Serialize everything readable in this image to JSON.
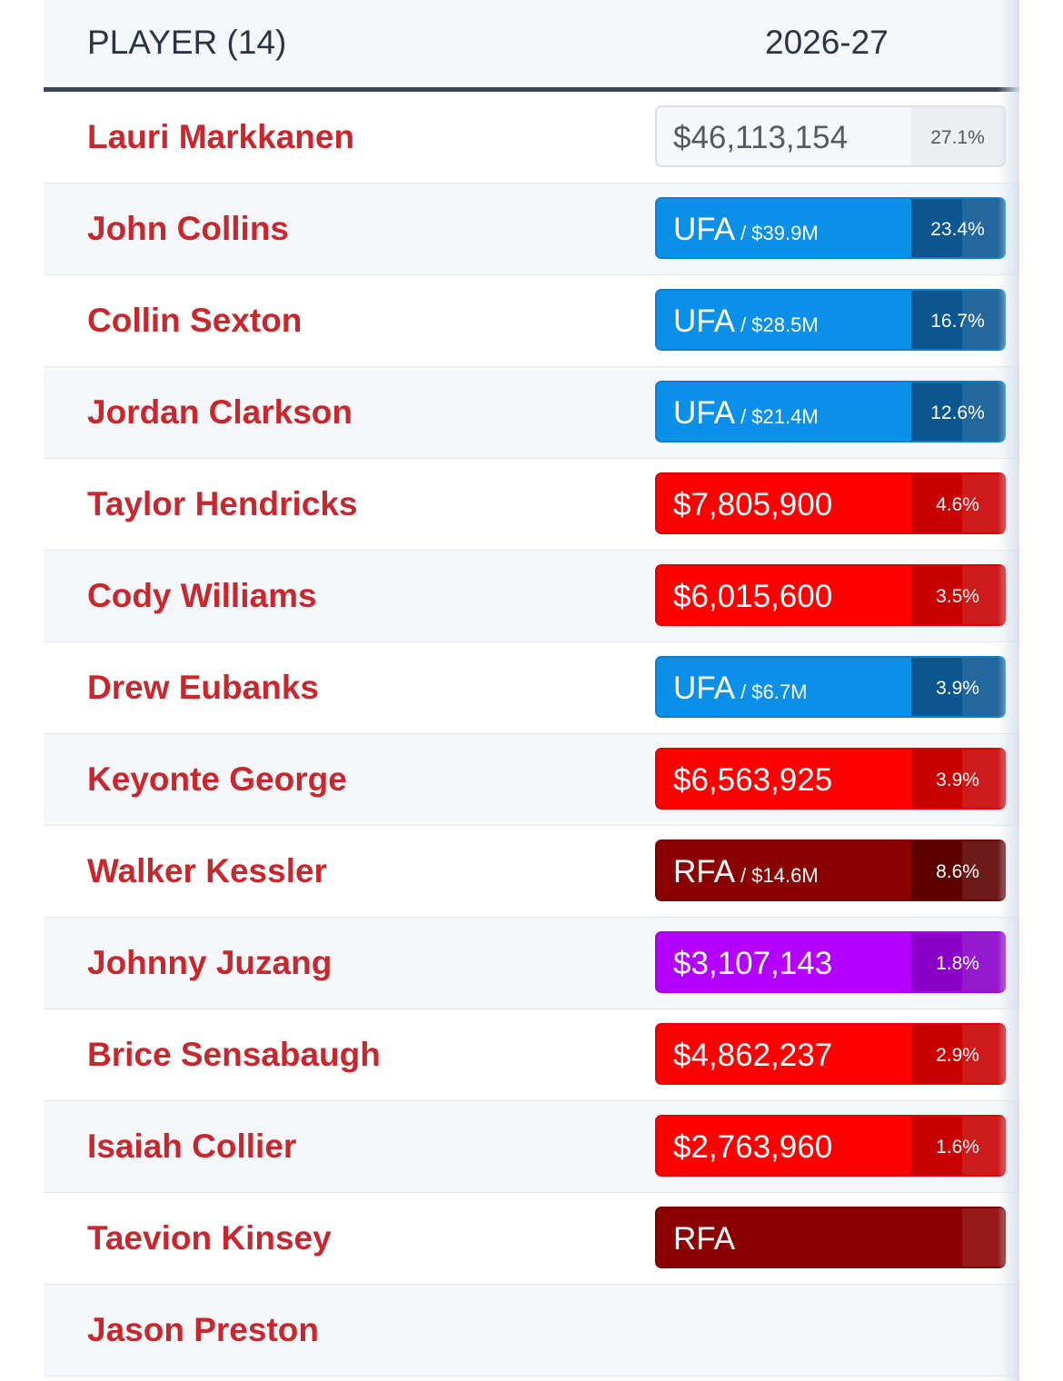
{
  "header": {
    "player_col": "PLAYER (14)",
    "season_col": "2026-27"
  },
  "rows": [
    {
      "name": "Lauri Markkanen",
      "type": "gray",
      "main": "$46,113,154",
      "sub": "",
      "pct": "27.1%"
    },
    {
      "name": "John Collins",
      "type": "ufa",
      "main": "UFA",
      "sub": "/ $39.9M",
      "pct": "23.4%"
    },
    {
      "name": "Collin Sexton",
      "type": "ufa",
      "main": "UFA",
      "sub": "/ $28.5M",
      "pct": "16.7%"
    },
    {
      "name": "Jordan Clarkson",
      "type": "ufa",
      "main": "UFA",
      "sub": "/ $21.4M",
      "pct": "12.6%"
    },
    {
      "name": "Taylor Hendricks",
      "type": "red",
      "main": "$7,805,900",
      "sub": "",
      "pct": "4.6%"
    },
    {
      "name": "Cody Williams",
      "type": "red",
      "main": "$6,015,600",
      "sub": "",
      "pct": "3.5%"
    },
    {
      "name": "Drew Eubanks",
      "type": "ufa",
      "main": "UFA",
      "sub": "/ $6.7M",
      "pct": "3.9%"
    },
    {
      "name": "Keyonte George",
      "type": "red",
      "main": "$6,563,925",
      "sub": "",
      "pct": "3.9%"
    },
    {
      "name": "Walker Kessler",
      "type": "rfa",
      "main": "RFA",
      "sub": "/ $14.6M",
      "pct": "8.6%"
    },
    {
      "name": "Johnny Juzang",
      "type": "purple",
      "main": "$3,107,143",
      "sub": "",
      "pct": "1.8%"
    },
    {
      "name": "Brice Sensabaugh",
      "type": "red",
      "main": "$4,862,237",
      "sub": "",
      "pct": "2.9%"
    },
    {
      "name": "Isaiah Collier",
      "type": "red",
      "main": "$2,763,960",
      "sub": "",
      "pct": "1.6%"
    },
    {
      "name": "Taevion Kinsey",
      "type": "rfa",
      "main": "RFA",
      "sub": "",
      "pct": ""
    },
    {
      "name": "Jason Preston",
      "type": "none",
      "main": "",
      "sub": "",
      "pct": ""
    }
  ],
  "colors": {
    "player_name": "#c8282d",
    "ufa": "#0a90e8",
    "guaranteed_red": "#ff0000",
    "rfa": "#8b0000",
    "player_option": "#b300ff",
    "header_rule": "#3d4657"
  }
}
